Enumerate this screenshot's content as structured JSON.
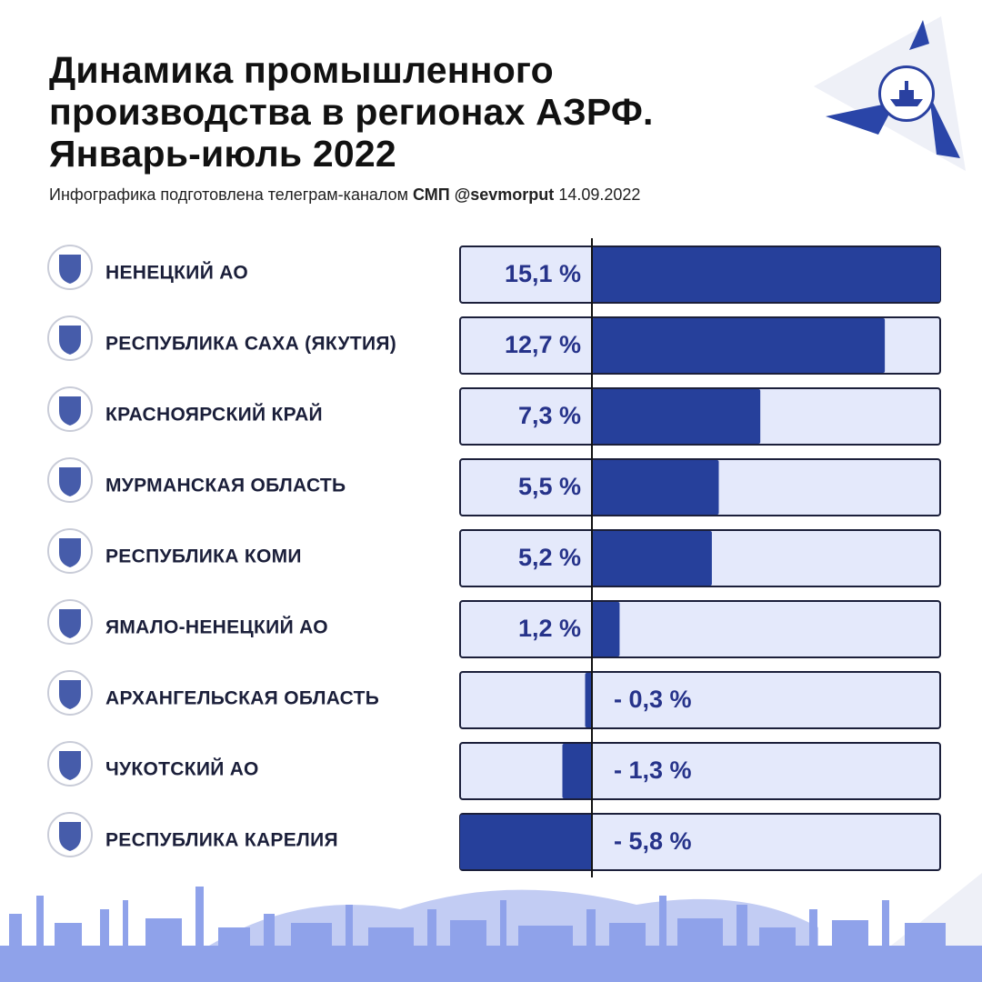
{
  "header": {
    "title_lines": [
      "Динамика промышленного",
      "производства в регионах АЗРФ.",
      "Январь-июль 2022"
    ],
    "subtitle_prefix": "Инфографика подготовлена телеграм-каналом",
    "subtitle_channel": "СМП @sevmorput",
    "subtitle_date": "14.09.2022"
  },
  "colors": {
    "bar": "#26409b",
    "track": "#e4e9fb",
    "track_border": "#1b1f3a",
    "label": "#1b1f3a",
    "value_text": "#26338a",
    "deco_blue": "#2a45a8",
    "skyline": "#8fa2ea"
  },
  "chart_data": {
    "type": "bar",
    "orientation": "horizontal",
    "unit": "%",
    "categories": [
      "НЕНЕЦКИЙ АО",
      "РЕСПУБЛИКА САХА (ЯКУТИЯ)",
      "КРАСНОЯРСКИЙ КРАЙ",
      "МУРМАНСКАЯ ОБЛАСТЬ",
      "РЕСПУБЛИКА КОМИ",
      "ЯМАЛО-НЕНЕЦКИЙ АО",
      "АРХАНГЕЛЬСКАЯ ОБЛАСТЬ",
      "ЧУКОТСКИЙ АО",
      "РЕСПУБЛИКА КАРЕЛИЯ"
    ],
    "values": [
      15.1,
      12.7,
      7.3,
      5.5,
      5.2,
      1.2,
      -0.3,
      -1.3,
      -5.8
    ],
    "value_labels": [
      "15,1 %",
      "12,7 %",
      "7,3 %",
      "5,5 %",
      "5,2 %",
      "1,2 %",
      "- 0,3 %",
      "- 1,3 %",
      "-  5,8 %"
    ],
    "emblems": [
      "nenets-emblem-icon",
      "sakha-emblem-icon",
      "krasnoyarsk-emblem-icon",
      "murmansk-emblem-icon",
      "komi-emblem-icon",
      "yamal-emblem-icon",
      "arkhangelsk-emblem-icon",
      "chukotka-emblem-icon",
      "karelia-emblem-icon"
    ],
    "xlim": [
      -5.8,
      15.1
    ],
    "grid": false,
    "legend": "none"
  }
}
